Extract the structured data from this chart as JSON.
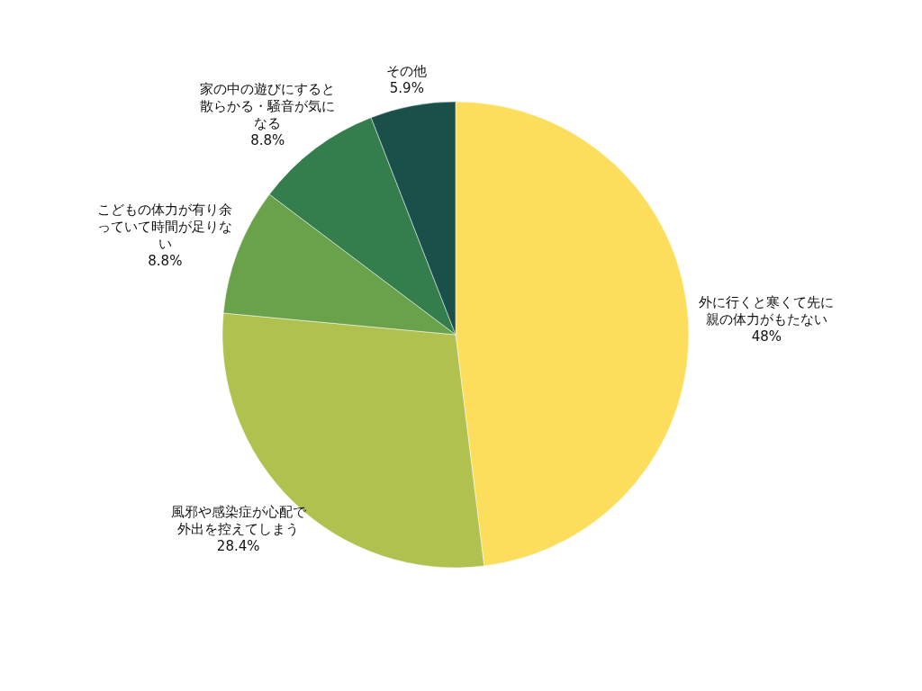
{
  "chart_data": {
    "type": "pie",
    "categories": [
      "外に行くと寒くて先に親の体力がもたない",
      "風邪や感染症が心配で外出を控えてしまう",
      "こどもの体力が有り余っていて時間が足りない",
      "家の中の遊びにすると散らかる・騒音が気になる",
      "その他"
    ],
    "values": [
      48,
      28.4,
      8.8,
      8.8,
      5.9
    ],
    "value_labels": [
      "48%",
      "28.4%",
      "8.8%",
      "8.8%",
      "5.9%"
    ],
    "colors": [
      "#fddd5c",
      "#b1c14f",
      "#6aa24b",
      "#337e4c",
      "#1b4f4a"
    ],
    "legend": false
  }
}
